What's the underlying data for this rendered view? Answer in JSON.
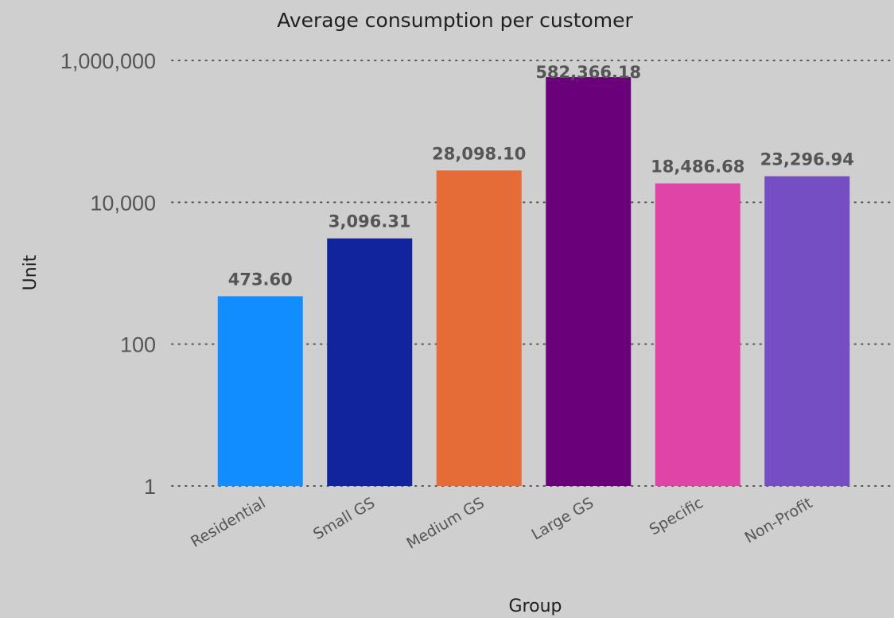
{
  "chart_data": {
    "type": "bar",
    "title": "Average consumption per customer",
    "xlabel": "Group",
    "ylabel": "Unit",
    "yscale": "log",
    "ylim": [
      1,
      1000000
    ],
    "yticks": [
      1,
      100,
      10000,
      1000000
    ],
    "ytick_labels": [
      "1",
      "100",
      "10,000",
      "1,000,000"
    ],
    "grid": true,
    "categories": [
      "Residential",
      "Small GS",
      "Medium GS",
      "Large GS",
      "Specific",
      "Non-Profit"
    ],
    "values": [
      473.6,
      3096.31,
      28098.1,
      582366.18,
      18486.68,
      23296.94
    ],
    "data_labels": [
      "473.60",
      "3,096.31",
      "28,098.10",
      "582,366.18",
      "18,486.68",
      "23,296.94"
    ],
    "colors": [
      "#118dff",
      "#12239e",
      "#e66c37",
      "#6b007b",
      "#e044a7",
      "#744ec2"
    ]
  }
}
